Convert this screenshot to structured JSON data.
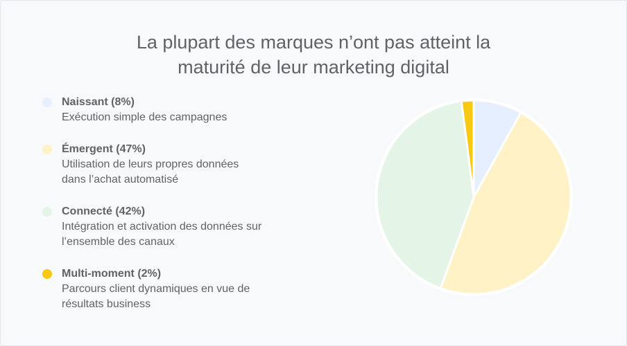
{
  "title_lines": [
    "La plupart des marques n’ont pas atteint la",
    "maturité de leur marketing digital"
  ],
  "legend": [
    {
      "label": "Naissant (8%)",
      "desc_lines": [
        "Exécution simple des campagnes"
      ],
      "color": "#e6efff"
    },
    {
      "label": "Émergent (47%)",
      "desc_lines": [
        "Utilisation de leurs propres données",
        "dans l’achat automatisé"
      ],
      "color": "#fff2c6"
    },
    {
      "label": "Connecté (42%)",
      "desc_lines": [
        "Intégration et activation des données sur",
        "l’ensemble des canaux"
      ],
      "color": "#e4f4e6"
    },
    {
      "label": "Multi-moment (2%)",
      "desc_lines": [
        "Parcours client dynamiques en vue de",
        "résultats business"
      ],
      "color": "#f9c812"
    }
  ],
  "chart_data": {
    "type": "pie",
    "categories": [
      "Naissant",
      "Émergent",
      "Connecté",
      "Multi-moment"
    ],
    "values": [
      8,
      47,
      42,
      2
    ],
    "colors": [
      "#e6efff",
      "#fff2c6",
      "#e4f4e6",
      "#f9c812"
    ],
    "title": "La plupart des marques n’ont pas atteint la maturité de leur marketing digital",
    "start_angle_deg": 0,
    "direction": "clockwise"
  }
}
